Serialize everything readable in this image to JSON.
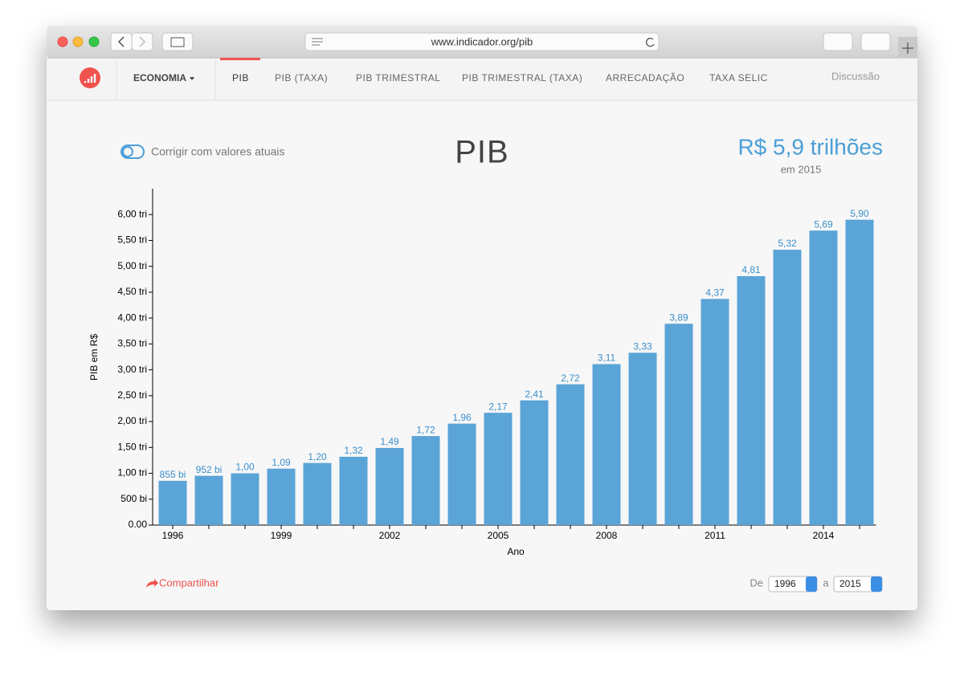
{
  "browser": {
    "url": "www.indicador.org/pib"
  },
  "nav": {
    "menu": "ECONOMIA",
    "tabs": [
      "PIB",
      "PIB (TAXA)",
      "PIB TRIMESTRAL",
      "PIB TRIMESTRAL (TAXA)",
      "ARRECADAÇÃO",
      "TAXA SELIC"
    ],
    "link": "Discussão"
  },
  "header": {
    "toggle_label": "Corrigir com valores atuais",
    "title": "PIB",
    "highlight": "R$ 5,9 trilhões",
    "highlight_sub": "em 2015"
  },
  "chart_data": {
    "type": "bar",
    "y_label": "PIB em R$",
    "x_label": "Ano",
    "color": "#5ba4d7",
    "categories": [
      "1996",
      null,
      null,
      "1999",
      null,
      null,
      "2002",
      null,
      null,
      "2005",
      null,
      null,
      "2008",
      null,
      null,
      "2011",
      null,
      null,
      "2014",
      null
    ],
    "values": [
      0.855,
      0.952,
      1.0,
      1.09,
      1.2,
      1.32,
      1.49,
      1.72,
      1.96,
      2.17,
      2.41,
      2.72,
      3.11,
      3.33,
      3.89,
      4.37,
      4.81,
      5.32,
      5.69,
      5.9
    ],
    "value_labels": [
      "855 bi",
      "952 bi",
      "1,00",
      "1,09",
      "1,20",
      "1,32",
      "1,49",
      "1,72",
      "1,96",
      "2,17",
      "2,41",
      "2,72",
      "3,11",
      "3,33",
      "3,89",
      "4,37",
      "4,81",
      "5,32",
      "5,69",
      "5,90"
    ],
    "ylim": [
      0,
      6.5
    ],
    "yticks": [
      {
        "value": 0,
        "label": "0.00"
      },
      {
        "value": 0.5,
        "label": "500 bi"
      },
      {
        "value": 1,
        "label": "1,00 tri"
      },
      {
        "value": 1.5,
        "label": "1,50 tri"
      },
      {
        "value": 2,
        "label": "2,00 tri"
      },
      {
        "value": 2.5,
        "label": "2,50 tri"
      },
      {
        "value": 3,
        "label": "3,00 tri"
      },
      {
        "value": 3.5,
        "label": "3,50 tri"
      },
      {
        "value": 4,
        "label": "4,00 tri"
      },
      {
        "value": 4.5,
        "label": "4,50 tri"
      },
      {
        "value": 5,
        "label": "5,00 tri"
      },
      {
        "value": 5.5,
        "label": "5,50 tri"
      },
      {
        "value": 6,
        "label": "6,00 tri"
      }
    ]
  },
  "footer": {
    "share": "Compartilhar",
    "from_label": "De",
    "from": "1996",
    "to_label": "a",
    "to": "2015"
  }
}
